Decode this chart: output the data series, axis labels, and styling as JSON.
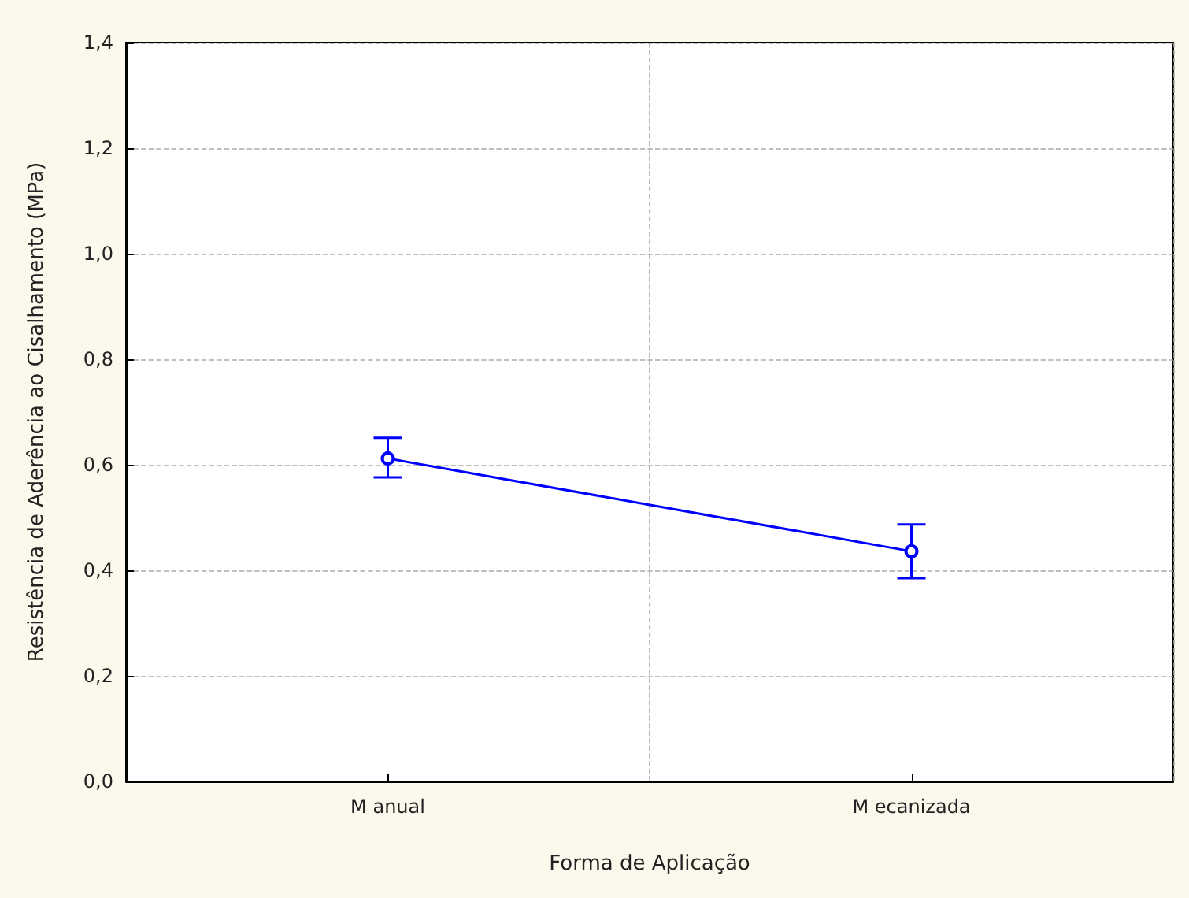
{
  "chart_data": {
    "type": "line",
    "xlabel": "Forma de Aplicação",
    "ylabel": "Resistência de Aderência ao Cisalhamento (MPa)",
    "categories": [
      "M anual",
      "M ecanizada"
    ],
    "series": [
      {
        "color": "#0000ff",
        "values": [
          0.612,
          0.436
        ],
        "errors": [
          [
            0.576,
            0.651
          ],
          [
            0.385,
            0.487
          ]
        ]
      }
    ],
    "ylim": [
      0,
      1.4
    ],
    "yticks": [
      {
        "value": 0,
        "label": "0,0"
      },
      {
        "value": 0.2,
        "label": "0,2"
      },
      {
        "value": 0.4,
        "label": "0,4"
      },
      {
        "value": 0.6,
        "label": "0,6"
      },
      {
        "value": 0.8,
        "label": "0,8"
      },
      {
        "value": 1,
        "label": "1,0"
      },
      {
        "value": 1.2,
        "label": "1,2"
      },
      {
        "value": 1.4,
        "label": "1,4"
      }
    ],
    "grid": true,
    "marker": "circle",
    "line_style": "solid"
  }
}
